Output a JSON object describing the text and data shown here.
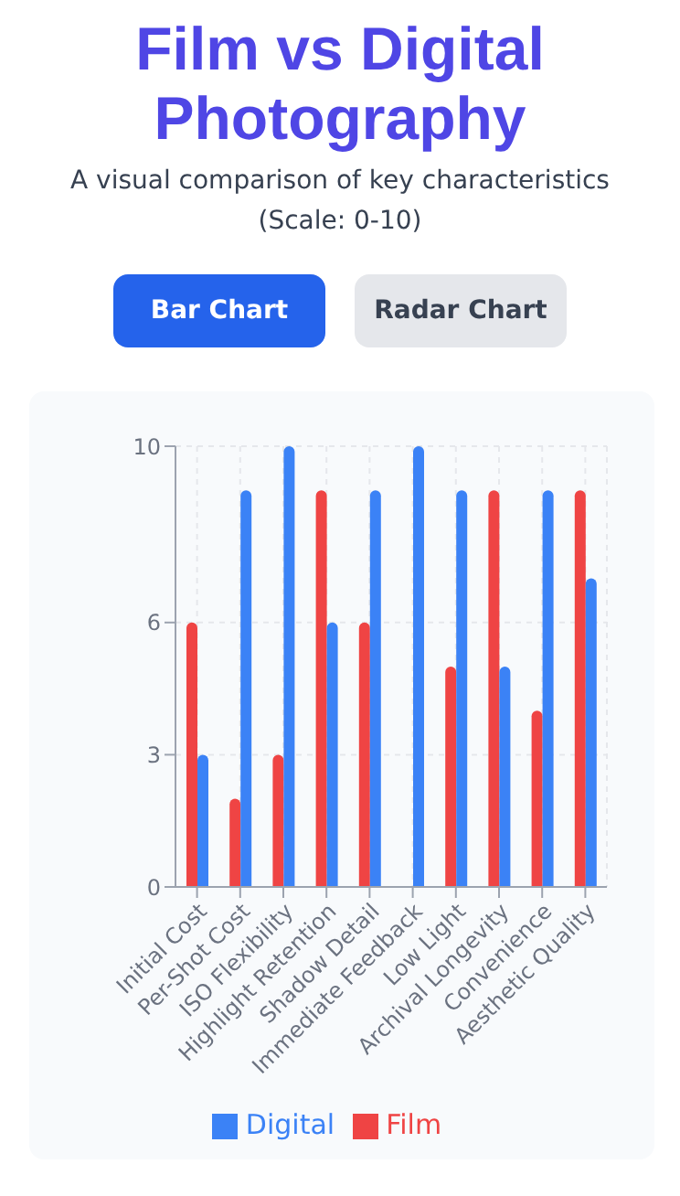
{
  "chart_data": {
    "type": "bar",
    "title": "Film vs Digital Photography",
    "subtitle": "A visual comparison of key characteristics (Scale: 0-10)",
    "annotations": [
      "Bar Chart",
      "Radar Chart"
    ],
    "categories": [
      "Initial Cost",
      "Per-Shot Cost",
      "ISO Flexibility",
      "Highlight Retention",
      "Shadow Detail",
      "Immediate Feedback",
      "Low Light",
      "Archival Longevity",
      "Convenience",
      "Aesthetic Quality"
    ],
    "series": [
      {
        "name": "Film",
        "color": "#ef4444",
        "values": [
          6,
          2,
          3,
          9,
          6,
          0,
          5,
          9,
          4,
          9
        ]
      },
      {
        "name": "Digital",
        "color": "#3b82f6",
        "values": [
          3,
          9,
          10,
          6,
          9,
          10,
          9,
          5,
          9,
          7
        ]
      }
    ],
    "ylim": [
      0,
      10
    ],
    "yticks": [
      0,
      3,
      6,
      10
    ],
    "grid": true,
    "legend": "bottom"
  }
}
